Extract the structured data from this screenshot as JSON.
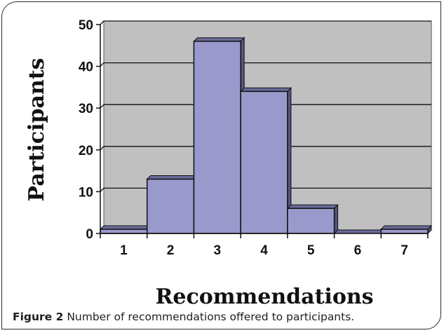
{
  "chart_data": {
    "type": "bar",
    "categories": [
      "1",
      "2",
      "3",
      "4",
      "5",
      "6",
      "7"
    ],
    "values": [
      1,
      13,
      46,
      34,
      6,
      0,
      1
    ],
    "xlabel": "Recommendations",
    "ylabel": "Participants",
    "ylim": [
      0,
      50
    ],
    "yticks": [
      "0",
      "10",
      "20",
      "30",
      "40",
      "50"
    ],
    "grid": true,
    "bar_color": "#9999cc",
    "plot_background": "#c0c0c0"
  },
  "caption": {
    "label": "Figure 2",
    "text": "Number of recommendations offered to participants."
  }
}
